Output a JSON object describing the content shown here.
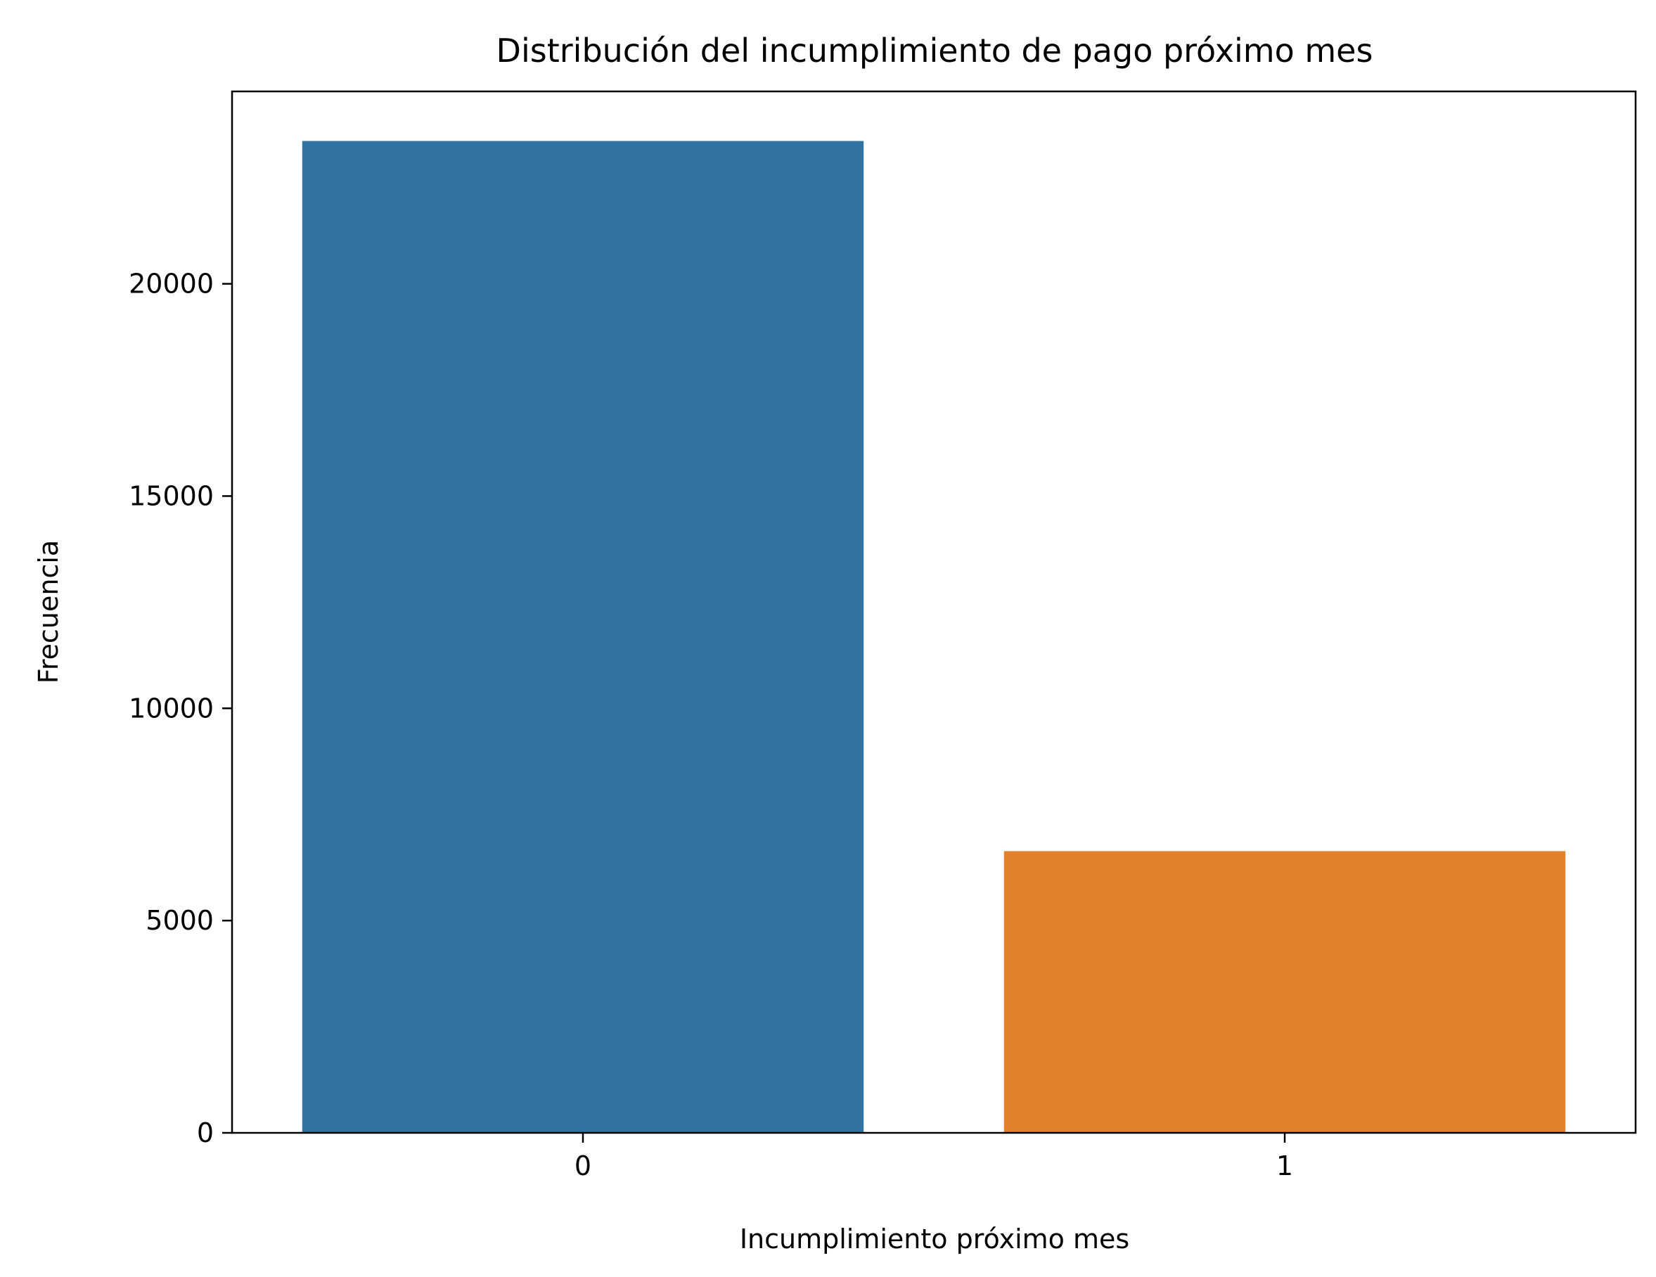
{
  "chart_data": {
    "type": "bar",
    "title": "Distribución del incumplimiento de pago próximo mes",
    "xlabel": "Incumplimiento próximo mes",
    "ylabel": "Frecuencia",
    "categories": [
      "0",
      "1"
    ],
    "values": [
      23364,
      6636
    ],
    "colors": [
      "#3274a1",
      "#e1812c"
    ],
    "ylim": [
      0,
      24532
    ],
    "yticks": [
      0,
      5000,
      10000,
      15000,
      20000
    ],
    "ytick_labels": [
      "0",
      "5000",
      "10000",
      "15000",
      "20000"
    ],
    "grid": false,
    "legend": "none"
  }
}
